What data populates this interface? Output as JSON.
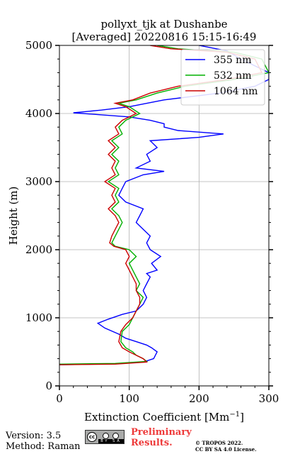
{
  "chart_data": {
    "type": "line",
    "title_line1": "pollyxt_tjk at Dushanbe",
    "title_line2": "[Averaged] 20220816 15:15-16:49",
    "xlabel": "Extinction Coefficient [Mm",
    "xlabel_sup": "−1",
    "xlabel_close": "]",
    "ylabel": "Height (m)",
    "xlim": [
      0,
      300
    ],
    "ylim": [
      0,
      5000
    ],
    "xticks": [
      0,
      100,
      200,
      300
    ],
    "yticks": [
      0,
      1000,
      2000,
      3000,
      4000,
      5000
    ],
    "grid": true,
    "legend_position": "top-right",
    "series": [
      {
        "name": "355 nm",
        "color": "#0000ff",
        "points": [
          [
            0,
            310
          ],
          [
            80,
            325
          ],
          [
            120,
            350
          ],
          [
            135,
            400
          ],
          [
            140,
            500
          ],
          [
            132,
            560
          ],
          [
            125,
            600
          ],
          [
            110,
            650
          ],
          [
            95,
            700
          ],
          [
            85,
            760
          ],
          [
            65,
            850
          ],
          [
            55,
            920
          ],
          [
            70,
            980
          ],
          [
            90,
            1050
          ],
          [
            110,
            1100
          ],
          [
            120,
            1200
          ],
          [
            125,
            1300
          ],
          [
            120,
            1400
          ],
          [
            125,
            1500
          ],
          [
            130,
            1600
          ],
          [
            125,
            1650
          ],
          [
            140,
            1700
          ],
          [
            132,
            1800
          ],
          [
            145,
            1900
          ],
          [
            130,
            2000
          ],
          [
            125,
            2100
          ],
          [
            130,
            2200
          ],
          [
            120,
            2300
          ],
          [
            110,
            2400
          ],
          [
            115,
            2500
          ],
          [
            120,
            2600
          ],
          [
            95,
            2700
          ],
          [
            85,
            2800
          ],
          [
            90,
            2900
          ],
          [
            95,
            3000
          ],
          [
            120,
            3100
          ],
          [
            150,
            3150
          ],
          [
            110,
            3200
          ],
          [
            130,
            3300
          ],
          [
            125,
            3400
          ],
          [
            140,
            3500
          ],
          [
            130,
            3600
          ],
          [
            200,
            3650
          ],
          [
            235,
            3700
          ],
          [
            170,
            3750
          ],
          [
            150,
            3800
          ],
          [
            150,
            3850
          ],
          [
            130,
            3900
          ],
          [
            100,
            3950
          ],
          [
            20,
            4010
          ],
          [
            60,
            4050
          ],
          [
            100,
            4100
          ],
          [
            150,
            4200
          ],
          [
            230,
            4300
          ],
          [
            280,
            4400
          ],
          [
            300,
            4500
          ],
          [
            300,
            4600
          ],
          [
            260,
            4800
          ],
          [
            240,
            4920
          ],
          [
            200,
            5000
          ]
        ]
      },
      {
        "name": "532 nm",
        "color": "#00b000",
        "points": [
          [
            0,
            320
          ],
          [
            80,
            330
          ],
          [
            125,
            360
          ],
          [
            120,
            400
          ],
          [
            110,
            450
          ],
          [
            105,
            500
          ],
          [
            95,
            560
          ],
          [
            88,
            650
          ],
          [
            90,
            800
          ],
          [
            100,
            900
          ],
          [
            105,
            1000
          ],
          [
            110,
            1100
          ],
          [
            115,
            1200
          ],
          [
            120,
            1300
          ],
          [
            110,
            1400
          ],
          [
            115,
            1500
          ],
          [
            110,
            1600
          ],
          [
            105,
            1700
          ],
          [
            100,
            1800
          ],
          [
            110,
            1900
          ],
          [
            100,
            2000
          ],
          [
            80,
            2050
          ],
          [
            75,
            2100
          ],
          [
            80,
            2200
          ],
          [
            85,
            2300
          ],
          [
            90,
            2400
          ],
          [
            85,
            2500
          ],
          [
            75,
            2600
          ],
          [
            85,
            2700
          ],
          [
            80,
            2800
          ],
          [
            85,
            2900
          ],
          [
            70,
            3000
          ],
          [
            85,
            3100
          ],
          [
            80,
            3200
          ],
          [
            85,
            3300
          ],
          [
            75,
            3400
          ],
          [
            85,
            3500
          ],
          [
            75,
            3600
          ],
          [
            90,
            3700
          ],
          [
            85,
            3800
          ],
          [
            95,
            3900
          ],
          [
            115,
            4000
          ],
          [
            100,
            4100
          ],
          [
            85,
            4150
          ],
          [
            110,
            4200
          ],
          [
            140,
            4300
          ],
          [
            180,
            4400
          ],
          [
            250,
            4500
          ],
          [
            300,
            4600
          ],
          [
            290,
            4800
          ],
          [
            250,
            4900
          ],
          [
            170,
            4950
          ],
          [
            140,
            5000
          ]
        ]
      },
      {
        "name": "1064 nm",
        "color": "#cc0000",
        "points": [
          [
            0,
            310
          ],
          [
            80,
            320
          ],
          [
            125,
            350
          ],
          [
            120,
            400
          ],
          [
            110,
            450
          ],
          [
            100,
            500
          ],
          [
            90,
            560
          ],
          [
            85,
            650
          ],
          [
            88,
            800
          ],
          [
            95,
            900
          ],
          [
            105,
            1000
          ],
          [
            110,
            1100
          ],
          [
            115,
            1200
          ],
          [
            115,
            1300
          ],
          [
            110,
            1400
          ],
          [
            110,
            1500
          ],
          [
            105,
            1600
          ],
          [
            100,
            1700
          ],
          [
            95,
            1800
          ],
          [
            100,
            1900
          ],
          [
            95,
            2000
          ],
          [
            78,
            2050
          ],
          [
            72,
            2100
          ],
          [
            75,
            2200
          ],
          [
            80,
            2300
          ],
          [
            85,
            2400
          ],
          [
            80,
            2500
          ],
          [
            70,
            2600
          ],
          [
            80,
            2700
          ],
          [
            75,
            2800
          ],
          [
            80,
            2900
          ],
          [
            65,
            3000
          ],
          [
            80,
            3100
          ],
          [
            75,
            3200
          ],
          [
            80,
            3300
          ],
          [
            70,
            3400
          ],
          [
            80,
            3500
          ],
          [
            70,
            3600
          ],
          [
            85,
            3700
          ],
          [
            80,
            3800
          ],
          [
            90,
            3900
          ],
          [
            110,
            4000
          ],
          [
            95,
            4100
          ],
          [
            80,
            4150
          ],
          [
            105,
            4200
          ],
          [
            130,
            4300
          ],
          [
            170,
            4400
          ],
          [
            240,
            4500
          ],
          [
            290,
            4600
          ],
          [
            280,
            4800
          ],
          [
            240,
            4900
          ],
          [
            160,
            4950
          ],
          [
            130,
            5000
          ]
        ]
      }
    ]
  },
  "footer": {
    "version": "Version: 3.5",
    "method": "Method: Raman",
    "cc_label": "cc",
    "cc_strip": "BY SA",
    "preliminary_line1": "Preliminary",
    "preliminary_line2": "Results.",
    "tropos_line1": "© TROPOS 2022.",
    "tropos_line2": "CC BY SA 4.0 License."
  }
}
